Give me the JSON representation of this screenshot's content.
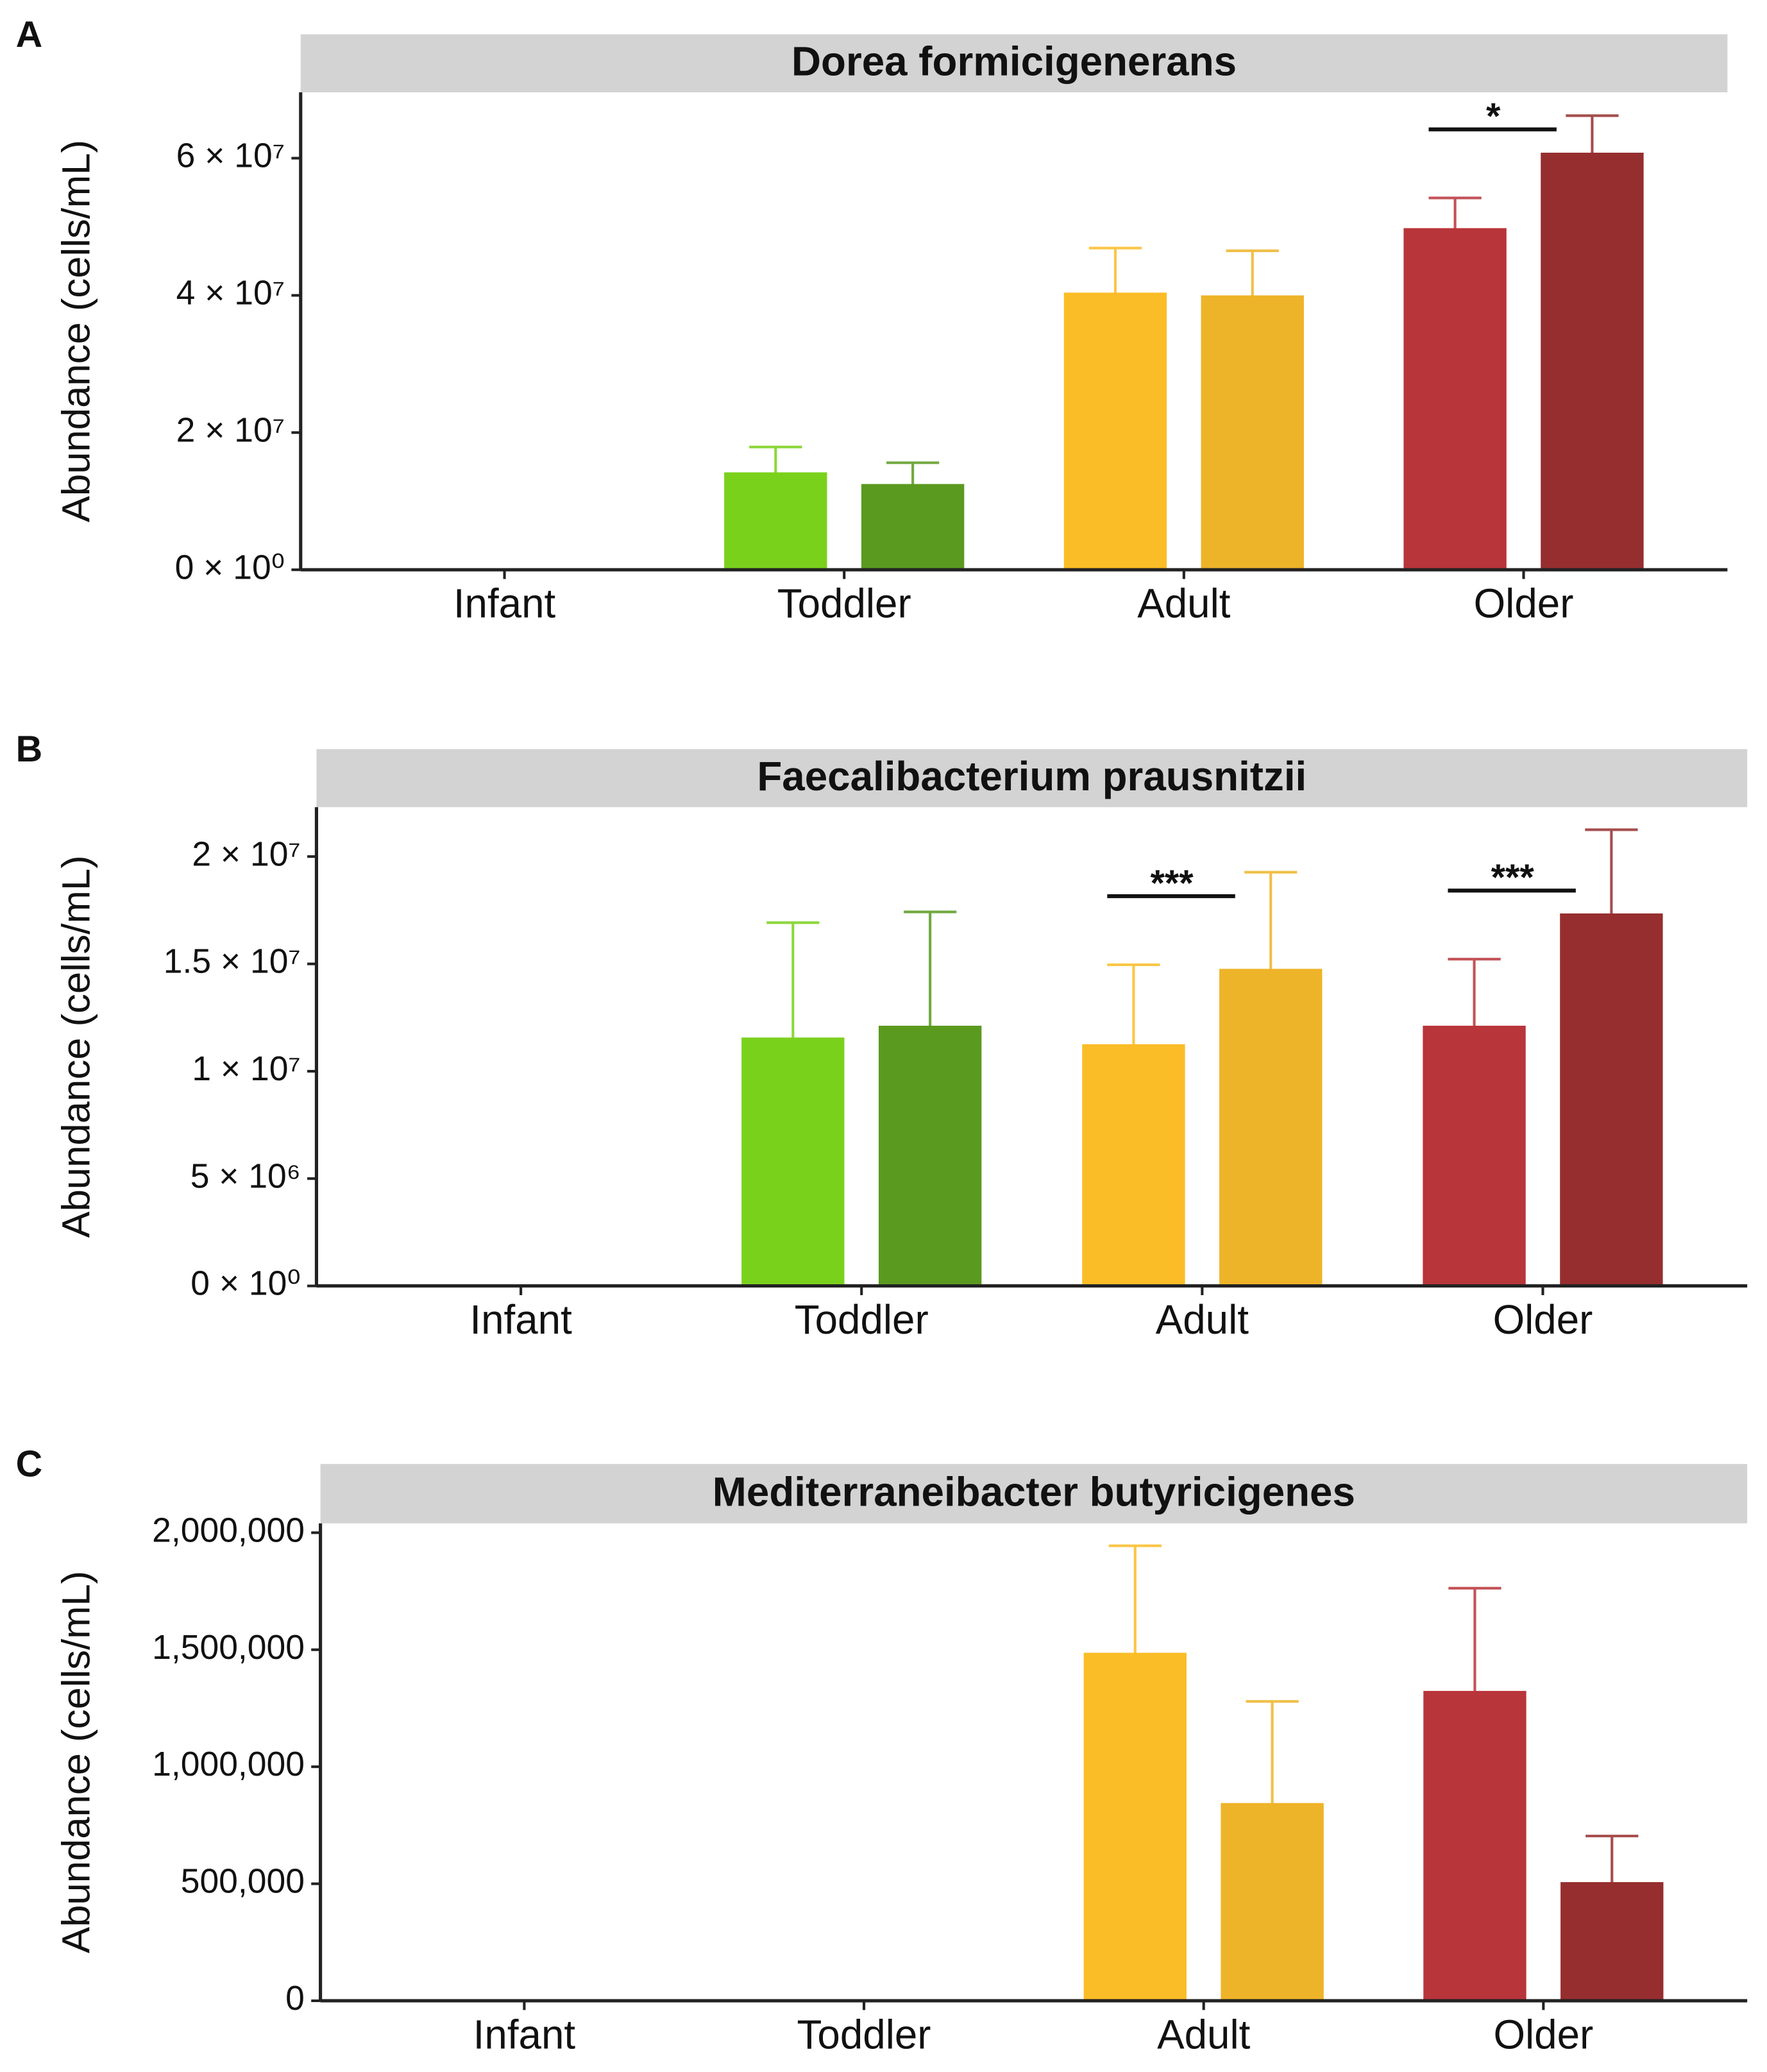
{
  "chart_data": [
    {
      "type": "bar",
      "panel_label": "A",
      "title": "Dorea formicigenerans",
      "y_label": "Abundance (cells/mL)",
      "categories": [
        "Infant",
        "Toddler",
        "Adult",
        "Older"
      ],
      "series": [
        {
          "colors": [
            null,
            "#7ad11c",
            "#fbbd27",
            "#b8353a"
          ],
          "values": [
            null,
            14200000,
            40400000,
            49800000
          ],
          "errors": [
            null,
            3700000,
            6500000,
            4400000
          ]
        },
        {
          "colors": [
            null,
            "#5a9a1f",
            "#eeb429",
            "#962e2f"
          ],
          "values": [
            null,
            12500000,
            40000000,
            60800000
          ],
          "errors": [
            null,
            3100000,
            6500000,
            5400000
          ]
        }
      ],
      "ylim": [
        0,
        69600000
      ],
      "yticks": [
        {
          "value": 0,
          "label": "0 × 10⁰"
        },
        {
          "value": 20000000,
          "label": "2 × 10⁷"
        },
        {
          "value": 40000000,
          "label": "4 × 10⁷"
        },
        {
          "value": 60000000,
          "label": "6 × 10⁷"
        }
      ],
      "annotations": [
        {
          "label": "*",
          "category": "Older"
        }
      ]
    },
    {
      "type": "bar",
      "panel_label": "B",
      "title": "Faecalibacterium prausnitzii",
      "y_label": "Abundance (cells/mL)",
      "categories": [
        "Infant",
        "Toddler",
        "Adult",
        "Older"
      ],
      "series": [
        {
          "colors": [
            null,
            "#7ad11c",
            "#fbbd27",
            "#b8353a"
          ],
          "values": [
            null,
            11570000,
            11260000,
            12120000
          ],
          "errors": [
            null,
            5350000,
            3700000,
            3100000
          ]
        },
        {
          "colors": [
            null,
            "#5a9a1f",
            "#eeb429",
            "#962e2f"
          ],
          "values": [
            null,
            12120000,
            14770000,
            17350000
          ],
          "errors": [
            null,
            5300000,
            4500000,
            3900000
          ]
        }
      ],
      "ylim": [
        0,
        22300000
      ],
      "yticks": [
        {
          "value": 0,
          "label": "0 × 10⁰"
        },
        {
          "value": 5000000,
          "label": "5 × 10⁶"
        },
        {
          "value": 10000000,
          "label": "1 × 10⁷"
        },
        {
          "value": 15000000,
          "label": "1.5 × 10⁷"
        },
        {
          "value": 20000000,
          "label": "2 × 10⁷"
        }
      ],
      "annotations": [
        {
          "label": "***",
          "category": "Adult"
        },
        {
          "label": "***",
          "category": "Older"
        }
      ]
    },
    {
      "type": "bar",
      "panel_label": "C",
      "title": "Mediterraneibacter butyricigenes",
      "y_label": "Abundance (cells/mL)",
      "categories": [
        "Infant",
        "Toddler",
        "Adult",
        "Older"
      ],
      "series": [
        {
          "colors": [
            null,
            null,
            "#fbbd27",
            "#b8353a"
          ],
          "values": [
            null,
            null,
            1487000,
            1324000
          ],
          "errors": [
            null,
            null,
            457000,
            439000
          ]
        },
        {
          "colors": [
            null,
            null,
            "#eeb429",
            "#962e2f"
          ],
          "values": [
            null,
            null,
            845000,
            507000
          ],
          "errors": [
            null,
            null,
            434000,
            197000
          ]
        }
      ],
      "ylim": [
        0,
        2040000
      ],
      "yticks": [
        0,
        {
          "value": 500000,
          "label": "500,000"
        },
        {
          "value": 1000000,
          "label": "1,000,000"
        },
        {
          "value": 1500000,
          "label": "1,500,000"
        },
        {
          "value": 2000000,
          "label": "2,000,000"
        }
      ],
      "annotations": []
    }
  ]
}
